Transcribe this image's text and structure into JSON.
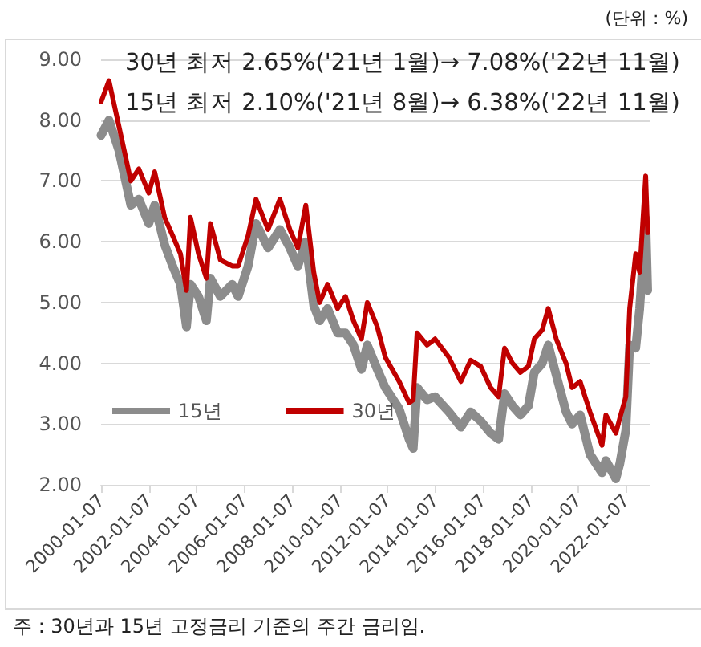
{
  "chart_data": {
    "type": "line",
    "annotations": [
      "(단위 : %)",
      "30년 최저 2.65%('21년 1월)→ 7.08%('22년 11월)",
      "15년 최저 2.10%('21년 8월)→ 6.38%('22년 11월)",
      "주 : 30년과 15년 고정금리 기준의 주간 금리임."
    ],
    "x": [
      "2000-01",
      "2000-05",
      "2000-10",
      "2001-04",
      "2001-08",
      "2002-01",
      "2002-04",
      "2002-09",
      "2003-01",
      "2003-05",
      "2003-08",
      "2003-10",
      "2004-02",
      "2004-06",
      "2004-08",
      "2005-01",
      "2005-07",
      "2005-10",
      "2006-03",
      "2006-07",
      "2007-01",
      "2007-07",
      "2007-12",
      "2008-04",
      "2008-08",
      "2008-12",
      "2009-03",
      "2009-07",
      "2009-12",
      "2010-04",
      "2010-08",
      "2010-12",
      "2011-03",
      "2011-08",
      "2011-12",
      "2012-07",
      "2012-12",
      "2013-02",
      "2013-04",
      "2013-09",
      "2014-01",
      "2014-08",
      "2015-02",
      "2015-07",
      "2015-12",
      "2016-05",
      "2016-09",
      "2016-12",
      "2017-04",
      "2017-08",
      "2017-12",
      "2018-03",
      "2018-07",
      "2018-10",
      "2019-02",
      "2019-07",
      "2019-10",
      "2020-02",
      "2020-07",
      "2021-01",
      "2021-03",
      "2021-08",
      "2021-10",
      "2022-01",
      "2022-03",
      "2022-06",
      "2022-08",
      "2022-11",
      "2022-12"
    ],
    "series": [
      {
        "name": "15년",
        "color": "#8c8c8c",
        "values": [
          7.75,
          8.0,
          7.5,
          6.6,
          6.7,
          6.3,
          6.6,
          5.95,
          5.6,
          5.3,
          4.6,
          5.3,
          5.1,
          4.7,
          5.4,
          5.1,
          5.3,
          5.1,
          5.6,
          6.3,
          5.9,
          6.2,
          5.9,
          5.6,
          6.0,
          4.95,
          4.7,
          4.9,
          4.5,
          4.5,
          4.3,
          3.9,
          4.3,
          3.9,
          3.6,
          3.25,
          2.75,
          2.6,
          3.6,
          3.4,
          3.45,
          3.2,
          2.95,
          3.2,
          3.05,
          2.85,
          2.75,
          3.5,
          3.3,
          3.15,
          3.3,
          3.85,
          4.0,
          4.3,
          3.8,
          3.2,
          3.0,
          3.15,
          2.5,
          2.2,
          2.4,
          2.1,
          2.35,
          2.9,
          4.3,
          4.25,
          4.9,
          6.38,
          5.2
        ]
      },
      {
        "name": "30년",
        "color": "#c00000",
        "values": [
          8.3,
          8.65,
          7.9,
          7.0,
          7.2,
          6.8,
          7.15,
          6.4,
          6.1,
          5.8,
          5.2,
          6.4,
          5.8,
          5.4,
          6.3,
          5.7,
          5.6,
          5.6,
          6.1,
          6.7,
          6.2,
          6.7,
          6.2,
          5.9,
          6.6,
          5.5,
          5.0,
          5.3,
          4.9,
          5.1,
          4.7,
          4.4,
          5.0,
          4.6,
          4.1,
          3.7,
          3.35,
          3.4,
          4.5,
          4.3,
          4.4,
          4.1,
          3.7,
          4.05,
          3.95,
          3.6,
          3.45,
          4.25,
          4.0,
          3.85,
          3.95,
          4.4,
          4.55,
          4.9,
          4.4,
          4.0,
          3.6,
          3.7,
          3.2,
          2.65,
          3.15,
          2.85,
          3.1,
          3.45,
          4.9,
          5.8,
          5.5,
          7.08,
          6.15
        ]
      }
    ],
    "xlim": [
      "2000-01-01",
      "2023-01-01"
    ],
    "xticks": [
      {
        "value": "2000-01-07",
        "label": "2000-01-07"
      },
      {
        "value": "2002-01-07",
        "label": "2002-01-07"
      },
      {
        "value": "2004-01-07",
        "label": "2004-01-07"
      },
      {
        "value": "2006-01-07",
        "label": "2006-01-07"
      },
      {
        "value": "2008-01-07",
        "label": "2008-01-07"
      },
      {
        "value": "2010-01-07",
        "label": "2010-01-07"
      },
      {
        "value": "2012-01-07",
        "label": "2012-01-07"
      },
      {
        "value": "2014-01-07",
        "label": "2014-01-07"
      },
      {
        "value": "2016-01-07",
        "label": "2016-01-07"
      },
      {
        "value": "2018-01-07",
        "label": "2018-01-07"
      },
      {
        "value": "2020-01-07",
        "label": "2020-01-07"
      },
      {
        "value": "2022-01-07",
        "label": "2022-01-07"
      }
    ],
    "ylim": [
      2,
      9
    ],
    "yticks": [
      {
        "value": 2,
        "label": "2.00"
      },
      {
        "value": 3,
        "label": "3.00"
      },
      {
        "value": 4,
        "label": "4.00"
      },
      {
        "value": 5,
        "label": "5.00"
      },
      {
        "value": 6,
        "label": "6.00"
      },
      {
        "value": 7,
        "label": "7.00"
      },
      {
        "value": 8,
        "label": "8.00"
      },
      {
        "value": 9,
        "label": "9.00"
      }
    ],
    "grid": "y",
    "legend": "bottom left",
    "marker": "none",
    "line_style": "solid"
  }
}
